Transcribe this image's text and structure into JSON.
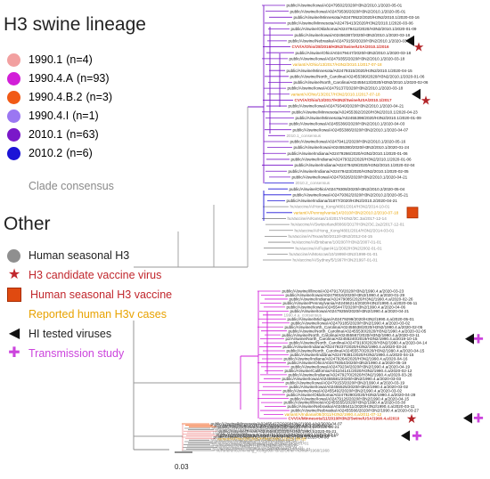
{
  "lineage_title": "H3 swine lineage",
  "lineages": [
    {
      "name": "1990.1",
      "count": "(n=4)",
      "color": "#f2a0a0"
    },
    {
      "name": "1990.4.A",
      "count": "(n=93)",
      "color": "#d21fd8"
    },
    {
      "name": "1990.4.B.2",
      "count": "(n=3)",
      "color": "#f15a16"
    },
    {
      "name": "1990.4.I",
      "count": "(n=1)",
      "color": "#9b77f2"
    },
    {
      "name": "2010.1",
      "count": "(n=63)",
      "color": "#7a18c9"
    },
    {
      "name": "2010.2",
      "count": "(n=6)",
      "color": "#1c14d6"
    }
  ],
  "clade_consensus_label": "Clade consensus",
  "other_title": "Other",
  "other_items": [
    {
      "label": "Human seasonal H3",
      "color": "#8f8f8f",
      "icon": "gray-circle-icon"
    },
    {
      "label": "H3 candidate vaccine virus",
      "color": "#c1272d",
      "icon": "red-star-icon"
    },
    {
      "label": "Human seasonal H3 vaccine",
      "color": "#c1272d",
      "icon": "red-square-icon"
    },
    {
      "label": "Reported human H3v cases",
      "color": "#e8a200",
      "icon": "orange-text-icon"
    },
    {
      "label": "HI tested viruses",
      "color": "#111111",
      "icon": "black-triangle-icon"
    },
    {
      "label": "Transmission study",
      "color": "#cc44dd",
      "icon": "purple-cross-icon"
    }
  ],
  "scale_bar_label": "0.03",
  "leaves_top": [
    "public/A/swine/Iowa/A02479502/2020/H3N2/2010.1/2020-05-01",
    "public/A/swine/Iowa/A02479536/2020/H3N2/2010.1/2020-05-01",
    "public/A/swine/Minnesota/A02479522/2020/H3N2/2010.1/2020-03-16",
    "public/A/swine/Minnesota/A02479413/2020/H3N2/2010.1/2020-03-06",
    "public/A/swine/Oklahoma/A02479412/2020/H3N2/2010.1/2020-01-09",
    "public/A/swine/Iowa/A02456387/2020/H3N2/2010.1/2020-03-18",
    "public/A/swine/Nebraska/A02479150/2020/H3N2/2010.1/2020-03-19",
    "CVV/A/Ohio/28/2016/H3N2/Swine/USA/2010.1/2016",
    "public/A/swine/Ohio/A02479447/2020/H3N2/2010.1/2020-03-18",
    "public/A/swine/Iowa/A02479355/2020/H3N2/2010.1/2020-03-18",
    "variant/A/Ohio/13/2017/H3N2/2010.1/2017-07-18",
    "public/A/swine/Minnesota/A02479315/2020/H3N2/2010.1/2020-04-15",
    "public/A/swine/North_Carolina/A02455399/2020/H3N2/2010.1/2020-01-06",
    "public/A/swine/North_Carolina/A02455413/2020/H3N2/2010.1/2020-02-06",
    "public/A/swine/Iowa/A02479137/2020/H3N2/2010.1/2020-03-18",
    "variant/A/Ohio/13/2017/H3N2/2010.1/2017-07-18",
    "CVV/A/Ohio/13/2017/H3N2/Swine/USA/2010.1/2017",
    "public/A/swine/Iowa/A02479340/2020/H3N2/2010.1/2020-04-21",
    "public/A/swine/Minnesota/A02455392/2020/H3N2/2010.1/2020-04-23",
    "public/A/swine/Minnesota/A02455398/2020/H3N2/2010.1/2020-01-09",
    "public/A/swine/Iowa/A02455366/2020/H3N2/2010.1/2020-04-03",
    "public/A/swine/Iowa/A02455388/2020/H3N2/2010.1/2020-04-07",
    "2010.1_consensus",
    "public/A/swine/Iowa/A02479412/2020/H3N2/2010.1/2020-05-16",
    "public/A/swine/Iowa/A02455380/2020/H3N2/2010.1/2020-01-24",
    "public/A/swine/Indiana/A02479266/2020/H3N2/2010.1/2020-01-06",
    "public/A/swine/Indiana/A02479322/2020/H3N2/2010.1/2020-01-06",
    "public/A/swine/Indiana/A02479429/2020/H3N2/2010.1/2020-02-04",
    "public/A/swine/Indiana/A02479423/2020/H3N2/2010.1/2020-02-05",
    "public/A/swine/Iowa/A02479326/2020/H3N2/2010.1/2020-04-21",
    "2010.2_consensus",
    "public/A/swine/Ohio/A02479308/2020/H3N2/2010.2/2020-05-04",
    "public/A/swine/Iowa/A02479362/2020/H3N2/2010.2/2020-05-21",
    "public/A/swine/Indiana/31877/2020/H3N2/2010.2/2020-04-21",
    "huVaccine/A/Hong_Kong/4801/2014/H3N2/2014-10-01",
    "variant/A/Pennsylvania/14/2010/H3N2/2010.2/2010-07-18",
    "huVaccine/A/Kansas/14/2017/H3N2/3C.3a/2017-12-14",
    "huVaccine/A/Switzerland/8060/2017/H3N2/3C.2a2/2017-12-01",
    "huVaccine/A/Hong_Kong/4801/2014/H3N2/2014-03-01",
    "huVaccine/A/Texas/50/2012/H3N2/2012-04-15",
    "huVaccine/A/Brisbane/10/2007/H3N2/2007-01-01",
    "huVaccine/A/Fujian/411/2002/H3N2/2002-01-01",
    "huVaccine/A/Moscow/10/1999/H3N2/1999-01-01",
    "huVaccine/A/Sydney/5/1997/H3N2/1997-01-01"
  ],
  "leaves_mid": [
    "public/A/swine/Illinois/A02479170/2020/H3N2/1990.4.a/2020-03-23",
    "public/A/swine/Iowa/A02479016/2020/H3N2/1990.4.a/2020-01-29",
    "public/A/swine/Indiana/A02479085/2020/H3N2/1990.4.a/2020-02-26",
    "public/A/swine/Pennsylvania/A02456214/2020/H3N2/1990.4.a/2020-06-11",
    "public/A/swine/Iowa/A02455447/2020/H3N2/1990.4.a/2020-04-06",
    "public/A/swine/Iowa/A02479259/2020/H3N2/1990.4.a/2020-04-21",
    "1990.4.a_consensus",
    "public/A/swine/Michigan/A02479299/2020/H3N2/1990.4.a/2020-05-01",
    "public/A/swine/Iowa/A02479185/2020/H3N2/1990.4.a/2020-03-02",
    "public/A/swine/North_Carolina/A02455538/2020/H3N2/1990.4.a/2020-02-05",
    "public/A/swine/North_Carolina/A02455530/2020/H3N2/1990.4.a/2020-02-05",
    "public/A/swine/North_Carolina/A02455567/2020/H3N2/1990.4.a/2020-03-11",
    "p2/A/swine/North_Carolina/A02455240/2019/H3N2/1990.4.a/2019-10-15",
    "public/A/swine/North_Carolina/A02479193/2020/H3N2/1990.4.a/2020-04-14",
    "public/A/swine/Indiana/A02479237/2020/H3N2/1990.4.a/2020-03-24",
    "public/A/swine/North_Carolina/A02455570/2020/H3N2/1990.4.a/2020-04-15",
    "public/A/swine/Indiana/A02479381/2020/H3N2/1990.4.a/2020-04-15",
    "public/A/swine/Indiana/A02479264/2020/H3N2/1990.4.a/2020-04-16",
    "public/A/swine/Ohio/A02479354/2020/H3N2/1990.4.a/2020-05-19",
    "public/A/swine/Iowa/A02479234/2020/H3N2/1990.4.a/2020-04-19",
    "public/A/swine/California/A01104141/2020/H3N2/1990.4.a/2020-02-12",
    "public/A/swine/Indiana/A02479270/2020/H3N2/1990.4.a/2020-03-28",
    "public/A/swine/Iowa/A02455581/2020/H3N2/1990.4.a/2020-03-03",
    "public/A/swine/Iowa/A02479153/2020/H3N2/1990.4.a/2020-03-19",
    "public/A/swine/Iowa/A02455525/2020/H3N2/1990.4.a/2020-03-02",
    "public/A/swine/Iowa/A02455492/2020/H3N2/1990.4.a/2020-03-02",
    "public/A/swine/Oklahoma/A02479290/2020/H3N2/1990.4.a/2020-04-29",
    "public/A/swine/Iowa/A02479126/2020/H3N2/1990.4.a/2020-04-15",
    "public/A/swine/Illinois/A02455555/2020/H3N2/1990.4.a/2020-03-30",
    "public/A/swine/Nebraska/A02455411/2020/H3N2/1990.4.a/2020-03-11",
    "public/A/swine/Nebraska/A02455566/2020/H3N2/1990.4.a/2020-03-27",
    "variant/A/Indiana/08/2011/H3N2/1990.4.a/2011-07-12",
    "CVV/A/Minnesota/11/2010/H3N2/Swine/USA/1990.4.a/2010"
  ],
  "leaves_low": [
    "public/A/swine/Minnesota/A02455427/2020/H3N2/1990.4.b2/2020-04-07",
    "p2/A/swine/Illinois/A02479007/2020/H3N2/1990.4.b2/2020-01-21",
    "public/A/swine/Iowa/A02479283/2020/H3N2/1990.4.b2/2020-04-21",
    "huVaccine/A/Wuhan/359/1995/H3N2/1995-01-01",
    "huVaccine/A/Johannesburg/33/1994/H3N2/1994-01-01",
    "public/A/swine/Texas/A02455653/2020/H3N2/1990.1/2020-05-21",
    "1990.1_consensus",
    "public/A/swine/Missouri/A02479155/2020/H3N2/1990.1/2020-03-19",
    "p2/A/swine/Missouri/A02257614/2018/H3N2/1990.1/2018-08-14",
    "public/A/swine/Iowa/A02479211/2020/H3N2/1990.1/2020-04-06",
    "variant/A/Ohio/26/2016/H3N2/1990.1/2016-08-05",
    "huVaccine/A/Beijing/32/1992/H3N2/1992-01-01",
    "huVaccine/A/Shanghai/11/1987/H3N2/1987-01-01",
    "huVaccine/A/Philippines/2/1982/H3N2/1982-01-01",
    "huVaccine/A/Bangkok/1/1979/H3N2/1979-01-01",
    "huVaccine/A/Texas/1/1977/H3N2/1977-01-01",
    "huVaccine/A/Victoria/3/1975/H3N2/1975-01-01",
    "huVaccine/A/Port_Chalmers/1/1973/H3N2/1973-01-01",
    "huReference/A/Hong_Kong/68/H3N2/Other-human-1968/1968"
  ]
}
